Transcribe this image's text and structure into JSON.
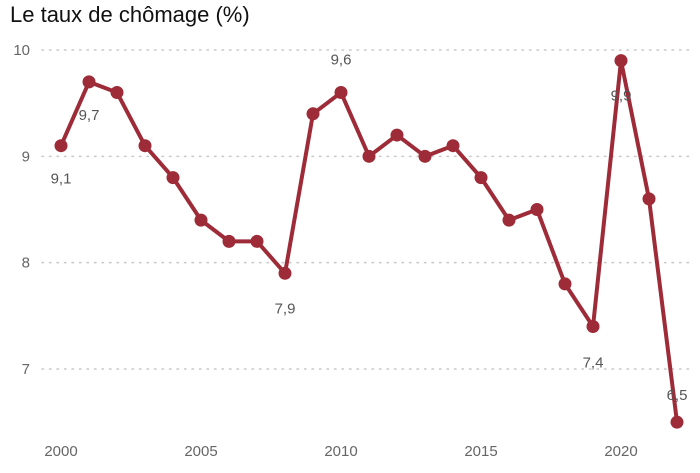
{
  "chart_data": {
    "type": "line",
    "title": "Le taux de chômage (%)",
    "xlabel": "",
    "ylabel": "",
    "x": [
      2000,
      2001,
      2002,
      2003,
      2004,
      2005,
      2006,
      2007,
      2008,
      2009,
      2010,
      2011,
      2012,
      2013,
      2014,
      2015,
      2016,
      2017,
      2018,
      2019,
      2020,
      2021,
      2022
    ],
    "series": [
      {
        "values": [
          9.1,
          9.7,
          9.6,
          9.1,
          8.8,
          8.4,
          8.2,
          8.2,
          7.9,
          9.4,
          9.6,
          9.0,
          9.2,
          9.0,
          9.1,
          8.8,
          8.4,
          8.5,
          7.8,
          7.4,
          9.9,
          8.6,
          6.5
        ]
      }
    ],
    "data_labels": [
      {
        "x": 2000,
        "text": "9,1"
      },
      {
        "x": 2001,
        "text": "9,7"
      },
      {
        "x": 2008,
        "text": "7,9"
      },
      {
        "x": 2010,
        "text": "9,6"
      },
      {
        "x": 2019,
        "text": "7,4"
      },
      {
        "x": 2020,
        "text": "9,9"
      },
      {
        "x": 2022,
        "text": "6,5"
      }
    ],
    "ylim": [
      6.4,
      10
    ],
    "xlim": [
      2000,
      2022
    ],
    "y_ticks": [
      "7",
      "8",
      "9",
      "10"
    ],
    "x_ticks": [
      "2000",
      "2005",
      "2010",
      "2015",
      "2020"
    ],
    "grid": "horizontal dotted",
    "colors": {
      "line": "#9e2b38",
      "grid": "#c8c8c8"
    }
  }
}
